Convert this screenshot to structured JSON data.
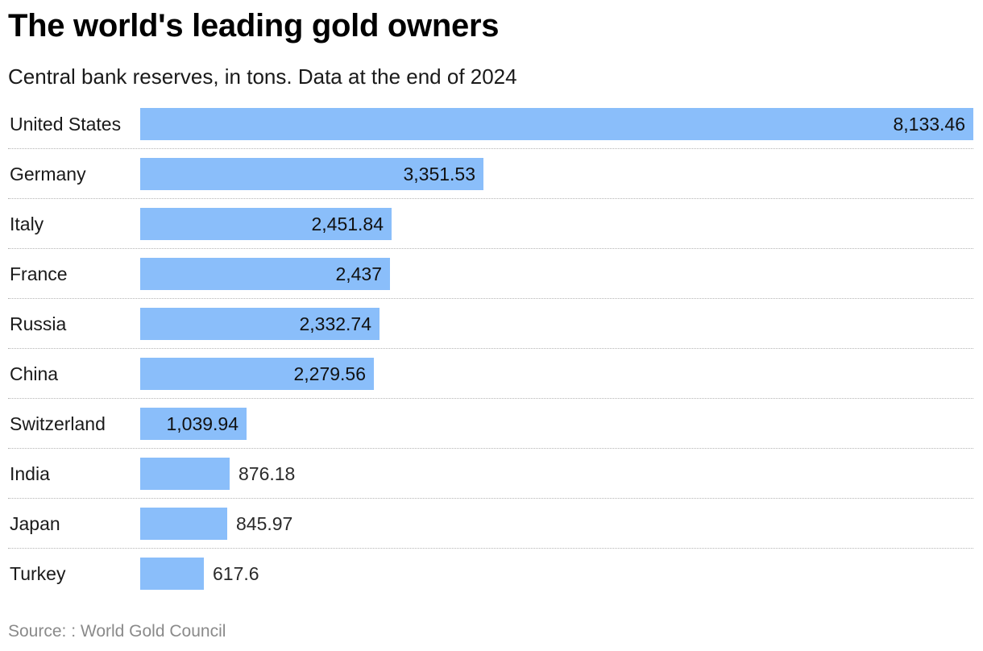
{
  "title": "The world's leading gold owners",
  "subtitle": "Central bank reserves, in tons. Data at the end of 2024",
  "source": "Source: : World Gold Council",
  "colors": {
    "bar": "#8ABEFA"
  },
  "chart_data": {
    "type": "bar",
    "orientation": "horizontal",
    "categories": [
      "United States",
      "Germany",
      "Italy",
      "France",
      "Russia",
      "China",
      "Switzerland",
      "India",
      "Japan",
      "Turkey"
    ],
    "values": [
      8133.46,
      3351.53,
      2451.84,
      2437,
      2332.74,
      2279.56,
      1039.94,
      876.18,
      845.97,
      617.6
    ],
    "value_labels": [
      "8,133.46",
      "3,351.53",
      "2,451.84",
      "2,437",
      "2,332.74",
      "2,279.56",
      "1,039.94",
      "876.18",
      "845.97",
      "617.6"
    ],
    "xlim": [
      0,
      8133.46
    ],
    "grid": false,
    "legend": "none"
  }
}
